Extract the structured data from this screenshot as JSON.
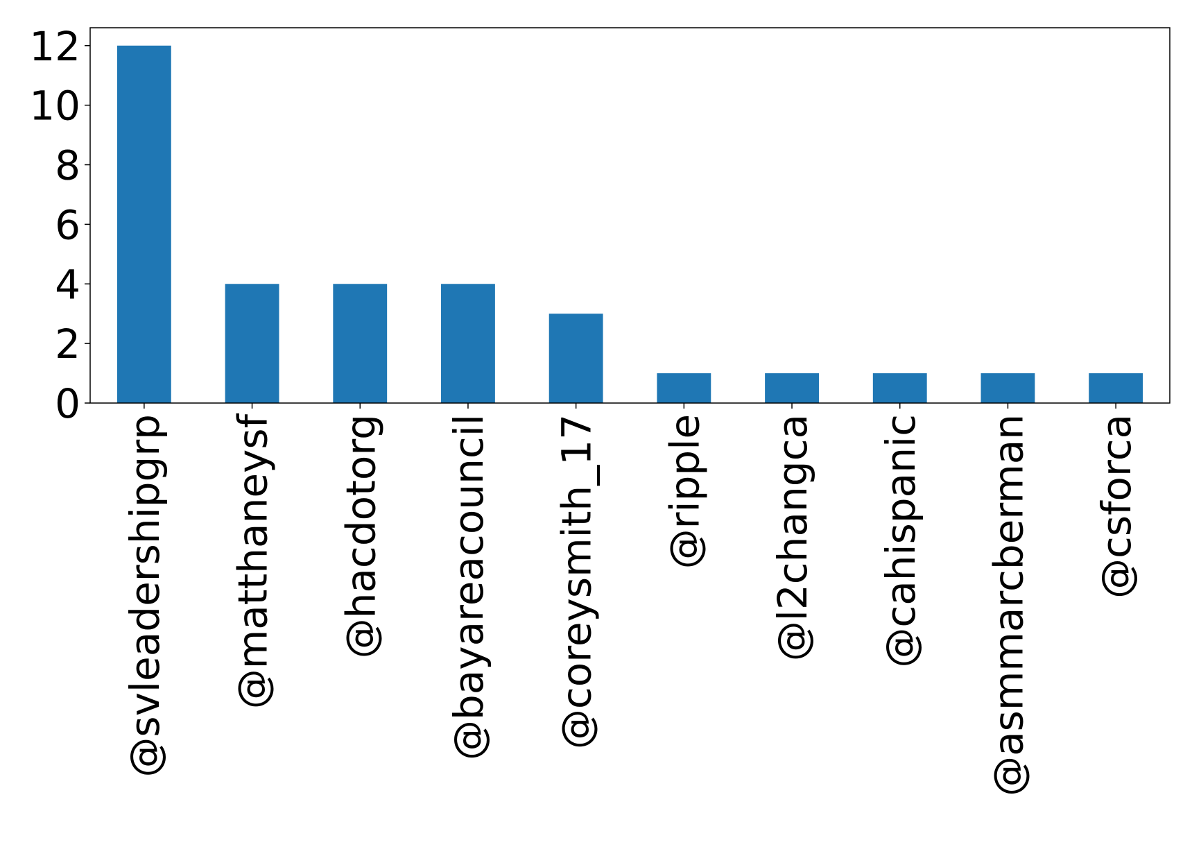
{
  "chart_data": {
    "type": "bar",
    "categories": [
      "@svleadershipgrp",
      "@matthaneysf",
      "@hacdotorg",
      "@bayareacouncil",
      "@coreysmith_17",
      "@ripple",
      "@l2changca",
      "@cahispanic",
      "@asmmarcberman",
      "@csforca"
    ],
    "values": [
      12,
      4,
      4,
      4,
      3,
      1,
      1,
      1,
      1,
      1
    ],
    "color": "#1f77b4",
    "ylim": [
      0,
      12.6
    ],
    "yticks": [
      0,
      2,
      4,
      6,
      8,
      10,
      12
    ],
    "grid": false
  }
}
